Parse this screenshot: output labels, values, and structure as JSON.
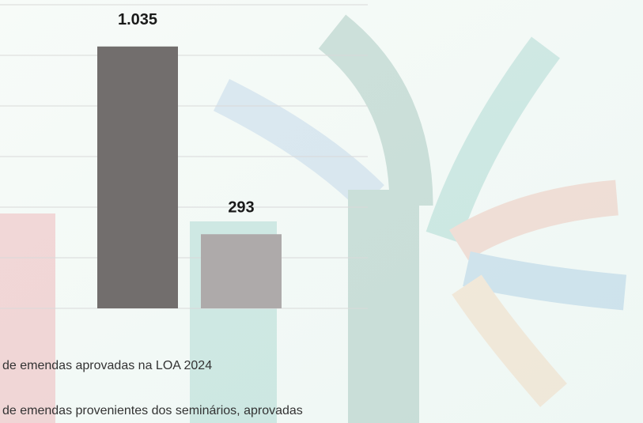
{
  "chart_data": {
    "type": "bar",
    "series": [
      {
        "name": "de emendas aprovadas na LOA 2024",
        "color": "#726e6d",
        "values": [
          1035
        ],
        "value_labels": [
          "1.035"
        ]
      },
      {
        "name": "de emendas provenientes dos seminários, aprovadas",
        "color": "#aeaaaa",
        "values": [
          293
        ],
        "value_labels": [
          "293"
        ]
      }
    ],
    "ylim": [
      0,
      1200
    ],
    "yticks": [
      0,
      200,
      400,
      600,
      800,
      1000,
      1200
    ],
    "grid": true
  }
}
